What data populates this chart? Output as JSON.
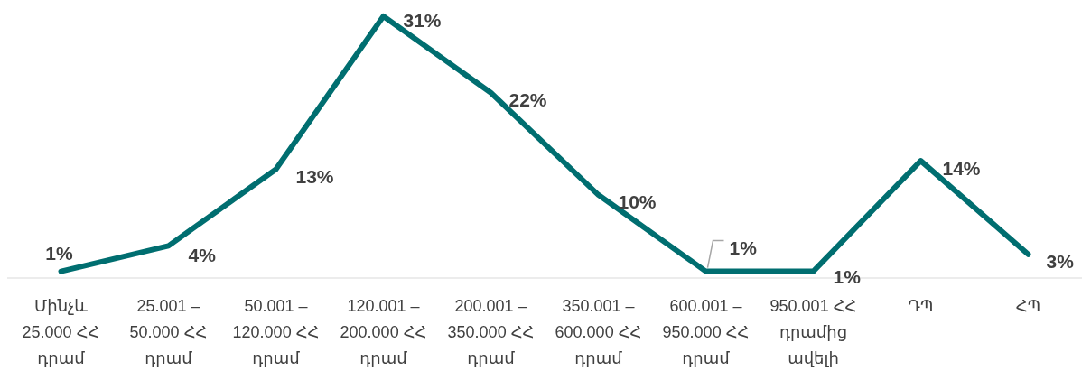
{
  "chart_data": {
    "type": "line",
    "categories": [
      "Մինչև 25.000 ՀՀ դրամ",
      "25.001 – 50.000 ՀՀ դրամ",
      "50.001 – 120.000 ՀՀ դրամ",
      "120.001 – 200.000 ՀՀ դրամ",
      "200.001 – 350.000 ՀՀ դրամ",
      "350.001 – 600.000 ՀՀ դրամ",
      "600.001 – 950.000 ՀՀ դրամ",
      "950.001 ՀՀ դրամից ավելի",
      "ԴՊ",
      "ՀՊ"
    ],
    "series": [
      {
        "color": "#006e70",
        "values": [
          1,
          4,
          13,
          31,
          22,
          10,
          1,
          1,
          14,
          3
        ],
        "value_labels": [
          "1%",
          "4%",
          "13%",
          "31%",
          "22%",
          "10%",
          "1%",
          "1%",
          "14%",
          "3%"
        ]
      }
    ],
    "marker": "none",
    "line_style": "solid"
  }
}
